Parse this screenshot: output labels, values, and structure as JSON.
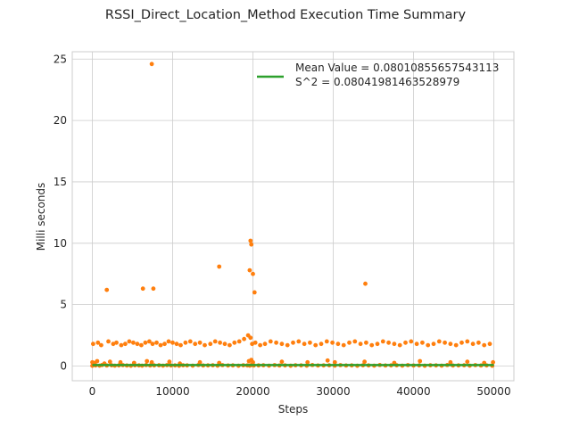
{
  "chart_data": {
    "type": "scatter",
    "title": "RSSI_Direct_Location_Method Execution Time Summary",
    "xlabel": "Steps",
    "ylabel": "Milli seconds",
    "xlim": [
      -2500,
      52500
    ],
    "ylim": [
      -1.2,
      25.6
    ],
    "xticks": [
      0,
      10000,
      20000,
      30000,
      40000,
      50000
    ],
    "yticks": [
      0,
      5,
      10,
      15,
      20,
      25
    ],
    "grid": true,
    "legend_position": "top-right",
    "series": [
      {
        "name": "Mean Value = 0.08010855657543113",
        "kind": "line",
        "color": "#2ca02c",
        "x": [
          0,
          50000
        ],
        "y": [
          0.08,
          0.08
        ]
      },
      {
        "name": "",
        "kind": "scatter",
        "color": "#ff7f0e",
        "x": [
          0,
          400,
          900,
          1200,
          1800,
          2400,
          2800,
          3300,
          3800,
          4300,
          4800,
          5300,
          5800,
          6200,
          6700,
          7200,
          7700,
          8300,
          8800,
          9300,
          9800,
          10300,
          10800,
          11300,
          11800,
          12500,
          13200,
          13800,
          14400,
          15000,
          15600,
          16200,
          16900,
          17500,
          18200,
          18800,
          19300,
          19600,
          19800,
          20100,
          20700,
          21300,
          22000,
          22700,
          23300,
          24000,
          24700,
          25300,
          26000,
          26700,
          27400,
          28100,
          28800,
          29500,
          30200,
          30900,
          31600,
          32300,
          33000,
          33700,
          34400,
          35100,
          35800,
          36500,
          37200,
          37900,
          38600,
          39300,
          40000,
          40700,
          41400,
          42100,
          42800,
          43500,
          44200,
          44900,
          45600,
          46300,
          47000,
          47700,
          48400,
          49100,
          49800,
          0,
          300,
          600,
          1500,
          2200,
          3500,
          5200,
          6800,
          7400,
          9600,
          10900,
          13400,
          15800,
          19500,
          19800,
          20000,
          23600,
          26800,
          29300,
          30200,
          33900,
          37600,
          40800,
          44600,
          46700,
          48800,
          49900,
          100,
          700,
          1100,
          2000,
          2600,
          3000,
          3600,
          4100,
          4600,
          5100,
          5600,
          6100,
          6600,
          7100,
          7500,
          8000,
          8500,
          9000,
          9500,
          10000,
          10500,
          11000,
          11600,
          12200,
          12800,
          13400,
          14000,
          14700,
          15300,
          15900,
          16500,
          17100,
          17700,
          18300,
          18900,
          19400,
          19700,
          19900,
          20300,
          20900,
          21500,
          22200,
          22900,
          23600,
          24300,
          25000,
          25700,
          26400,
          27100,
          27800,
          28500,
          29200,
          29900,
          30600,
          31300,
          32000,
          32700,
          33400,
          34100,
          34800,
          35500,
          36200,
          36900,
          37600,
          38300,
          39000,
          39700,
          40400,
          41100,
          41800,
          42500,
          43200,
          43900,
          44600,
          45300,
          46000,
          46700,
          47400,
          48100,
          48800,
          49500,
          7400,
          19700,
          19800,
          19600,
          15800,
          20000,
          20200,
          7600,
          1800,
          6300,
          34000
        ],
        "y": [
          0.02,
          0.05,
          0.03,
          0.08,
          0.04,
          0.06,
          0.03,
          0.05,
          0.07,
          0.04,
          0.02,
          0.06,
          0.05,
          0.03,
          0.08,
          0.04,
          0.05,
          0.06,
          0.03,
          0.07,
          0.04,
          0.05,
          0.02,
          0.06,
          0.05,
          0.03,
          0.08,
          0.04,
          0.05,
          0.06,
          0.03,
          0.07,
          0.04,
          0.05,
          0.02,
          0.06,
          0.05,
          0.03,
          0.08,
          0.04,
          0.05,
          0.06,
          0.03,
          0.07,
          0.04,
          0.05,
          0.02,
          0.06,
          0.05,
          0.03,
          0.08,
          0.04,
          0.05,
          0.06,
          0.03,
          0.07,
          0.04,
          0.05,
          0.02,
          0.06,
          0.05,
          0.03,
          0.08,
          0.04,
          0.05,
          0.06,
          0.03,
          0.07,
          0.04,
          0.05,
          0.02,
          0.06,
          0.05,
          0.03,
          0.08,
          0.04,
          0.05,
          0.06,
          0.03,
          0.07,
          0.04,
          0.05,
          0.02,
          0.3,
          0.25,
          0.4,
          0.2,
          0.35,
          0.3,
          0.25,
          0.4,
          0.3,
          0.35,
          0.2,
          0.3,
          0.25,
          0.4,
          0.5,
          0.3,
          0.35,
          0.3,
          0.45,
          0.3,
          0.35,
          0.25,
          0.4,
          0.3,
          0.35,
          0.25,
          0.3,
          1.8,
          1.9,
          1.7,
          2.0,
          1.8,
          1.9,
          1.7,
          1.8,
          2.0,
          1.9,
          1.8,
          1.7,
          1.9,
          2.0,
          1.8,
          1.9,
          1.7,
          1.8,
          2.0,
          1.9,
          1.8,
          1.7,
          1.9,
          2.0,
          1.8,
          1.9,
          1.7,
          1.8,
          2.0,
          1.9,
          1.8,
          1.7,
          1.9,
          2.0,
          2.2,
          2.5,
          2.3,
          1.8,
          1.9,
          1.7,
          1.8,
          2.0,
          1.9,
          1.8,
          1.7,
          1.9,
          2.0,
          1.8,
          1.9,
          1.7,
          1.8,
          2.0,
          1.9,
          1.8,
          1.7,
          1.9,
          2.0,
          1.8,
          1.9,
          1.7,
          1.8,
          2.0,
          1.9,
          1.8,
          1.7,
          1.9,
          2.0,
          1.8,
          1.9,
          1.7,
          1.8,
          2.0,
          1.9,
          1.8,
          1.7,
          1.9,
          2.0,
          1.8,
          1.9,
          1.7,
          1.8,
          24.6,
          10.2,
          9.9,
          7.8,
          8.1,
          7.5,
          6.0,
          6.3,
          6.2,
          6.3,
          6.7
        ]
      }
    ],
    "legend": [
      "Mean Value = 0.08010855657543113",
      "S^2 = 0.08041981463528979"
    ]
  }
}
